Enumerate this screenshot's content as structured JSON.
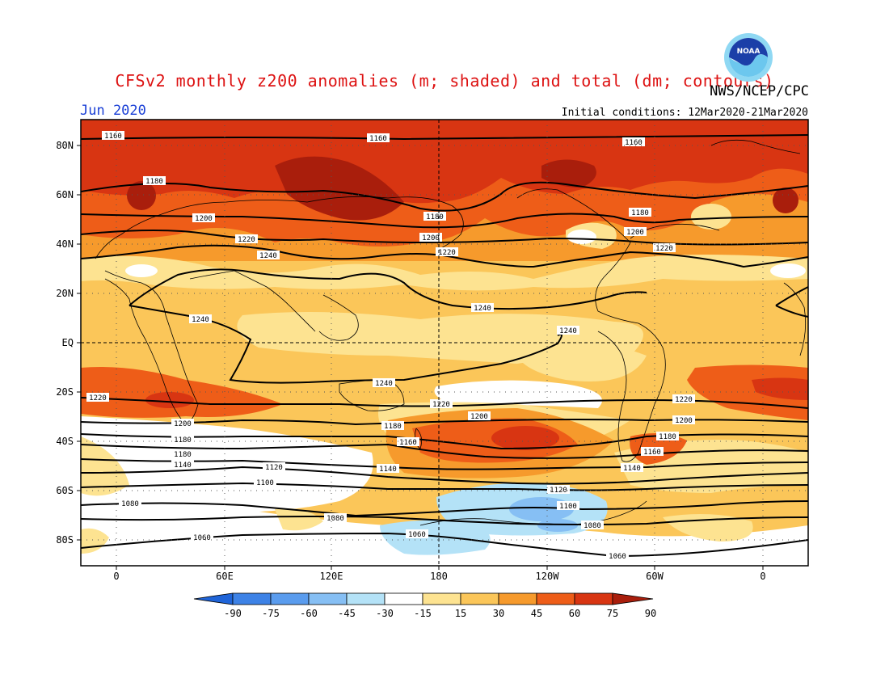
{
  "header": {
    "title": "CFSv2 monthly z200 anomalies (m; shaded) and total (dm; contours)",
    "month": "Jun 2020",
    "initial_conditions": "Initial conditions: 12Mar2020-21Mar2020",
    "agency": "NWS/NCEP/CPC",
    "logo_text": "NOAA"
  },
  "axes": {
    "lat_labels": [
      "80N",
      "60N",
      "40N",
      "20N",
      "EQ",
      "20S",
      "40S",
      "60S",
      "80S"
    ],
    "lon_labels": [
      "0",
      "60E",
      "120E",
      "180",
      "120W",
      "60W",
      "0"
    ]
  },
  "colorbar": {
    "ticks": [
      "-90",
      "-75",
      "-60",
      "-45",
      "-30",
      "-15",
      "15",
      "30",
      "45",
      "60",
      "75",
      "90"
    ],
    "colors": [
      "#1f64d8",
      "#3d82e6",
      "#5a9cee",
      "#86bff4",
      "#b4e2f7",
      "#ffffff",
      "#fde391",
      "#fbc659",
      "#f69a2c",
      "#ee5d18",
      "#d83512",
      "#a91e0c"
    ]
  },
  "anomaly_fill_colors": {
    "band_15_30": "#fde391",
    "band_30_45": "#fbc659",
    "band_45_60": "#f69a2c",
    "band_60_75": "#ee5d18",
    "band_75_90": "#d83512",
    "band_over_90": "#a91e0c",
    "neg_15_30": "#b4e2f7",
    "neg_30_45": "#86bff4",
    "neg_45_60": "#5a9cee"
  },
  "contours": [
    {
      "value": "1160",
      "labels": [
        "1160",
        "1160",
        "1160"
      ]
    },
    {
      "value": "1180",
      "labels": [
        "1180",
        "1180",
        "1180"
      ]
    },
    {
      "value": "1200",
      "labels": [
        "1200",
        "1200",
        "1200"
      ]
    },
    {
      "value": "1220",
      "labels": [
        "1220",
        "1220",
        "1220"
      ]
    },
    {
      "value": "1240",
      "labels": [
        "1240",
        "1240",
        "1240",
        "1240",
        "1240"
      ]
    },
    {
      "value": "1220",
      "labels": [
        "1220",
        "1220",
        "1220"
      ]
    },
    {
      "value": "1200",
      "labels": [
        "1200",
        "1200",
        "1200"
      ]
    },
    {
      "value": "1180",
      "labels": [
        "1180",
        "1180",
        "1180",
        "1180"
      ]
    },
    {
      "value": "1160",
      "labels": [
        "1160",
        "1160",
        "1160"
      ]
    },
    {
      "value": "1140",
      "labels": [
        "1140",
        "1140",
        "1140"
      ]
    },
    {
      "value": "1120",
      "labels": [
        "1120",
        "1120"
      ]
    },
    {
      "value": "1100",
      "labels": [
        "1100",
        "1100"
      ]
    },
    {
      "value": "1080",
      "labels": [
        "1080",
        "1080",
        "1080"
      ]
    },
    {
      "value": "1060",
      "labels": [
        "1060",
        "1060",
        "1060"
      ]
    }
  ]
}
